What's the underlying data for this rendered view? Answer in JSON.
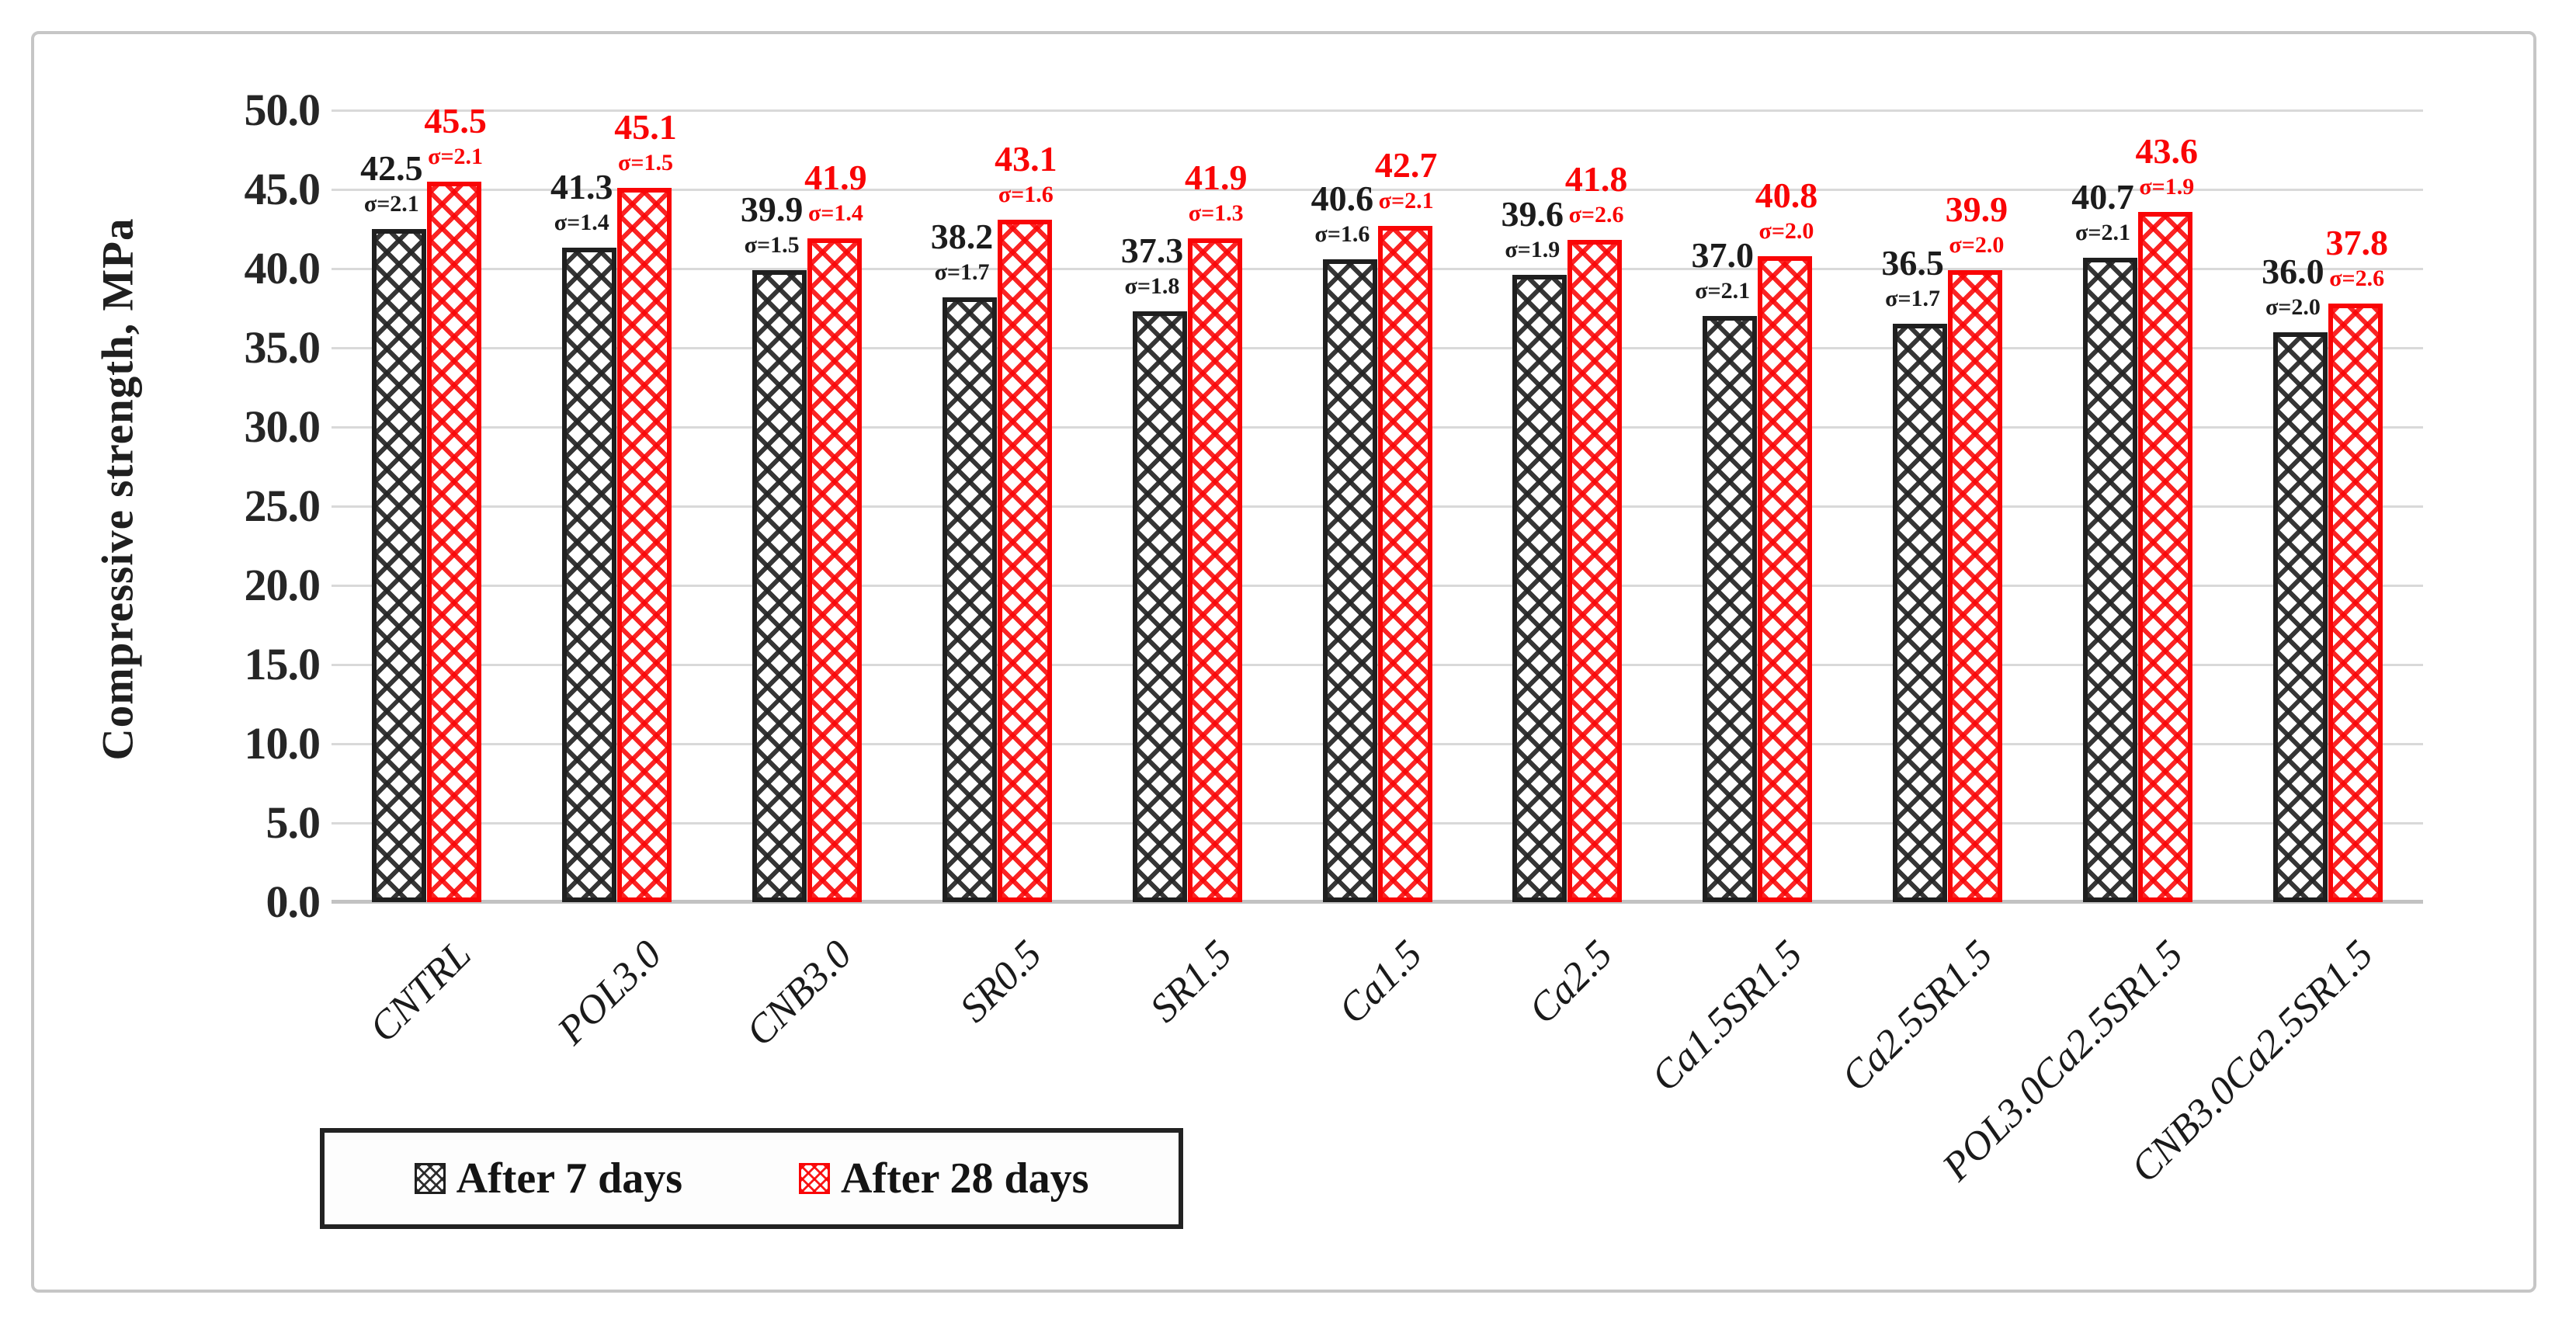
{
  "chart_data": {
    "type": "bar",
    "title": "",
    "xlabel": "",
    "ylabel": "Compressive strength, MPa",
    "ylim": [
      0,
      50
    ],
    "ytick_step": 5,
    "y_tick_labels": [
      "0.0",
      "5.0",
      "10.0",
      "15.0",
      "20.0",
      "25.0",
      "30.0",
      "35.0",
      "40.0",
      "45.0",
      "50.0"
    ],
    "grid": true,
    "legend_position": "bottom-left",
    "sigma_prefix": "σ=",
    "categories": [
      "CNTRL",
      "POL3.0",
      "CNB3.0",
      "SR0.5",
      "SR1.5",
      "Ca1.5",
      "Ca2.5",
      "Ca1.5SR1.5",
      "Ca2.5SR1.5",
      "POL3.0Ca2.5SR1.5",
      "CNB3.0Ca2.5SR1.5"
    ],
    "series": [
      {
        "name": "After 7 days",
        "color": "#1f1f1f",
        "values": [
          42.5,
          41.3,
          39.9,
          38.2,
          37.3,
          40.6,
          39.6,
          37.0,
          36.5,
          40.7,
          36.0
        ],
        "sigma": [
          2.1,
          1.4,
          1.5,
          1.7,
          1.8,
          1.6,
          1.9,
          2.1,
          1.7,
          2.1,
          2.0
        ]
      },
      {
        "name": "After 28 days",
        "color": "#f90506",
        "values": [
          45.5,
          45.1,
          41.9,
          43.1,
          41.9,
          42.7,
          41.8,
          40.8,
          39.9,
          43.6,
          37.8
        ],
        "sigma": [
          2.1,
          1.5,
          1.4,
          1.6,
          1.3,
          2.1,
          2.6,
          2.0,
          2.0,
          1.9,
          2.6
        ]
      }
    ]
  },
  "colors": {
    "grid": "#d9d9d9",
    "axis_line": "#c2c2c2",
    "figure_border": "#c6c6c6",
    "series_7d": "#1f1f1f",
    "series_28d": "#f90506"
  }
}
